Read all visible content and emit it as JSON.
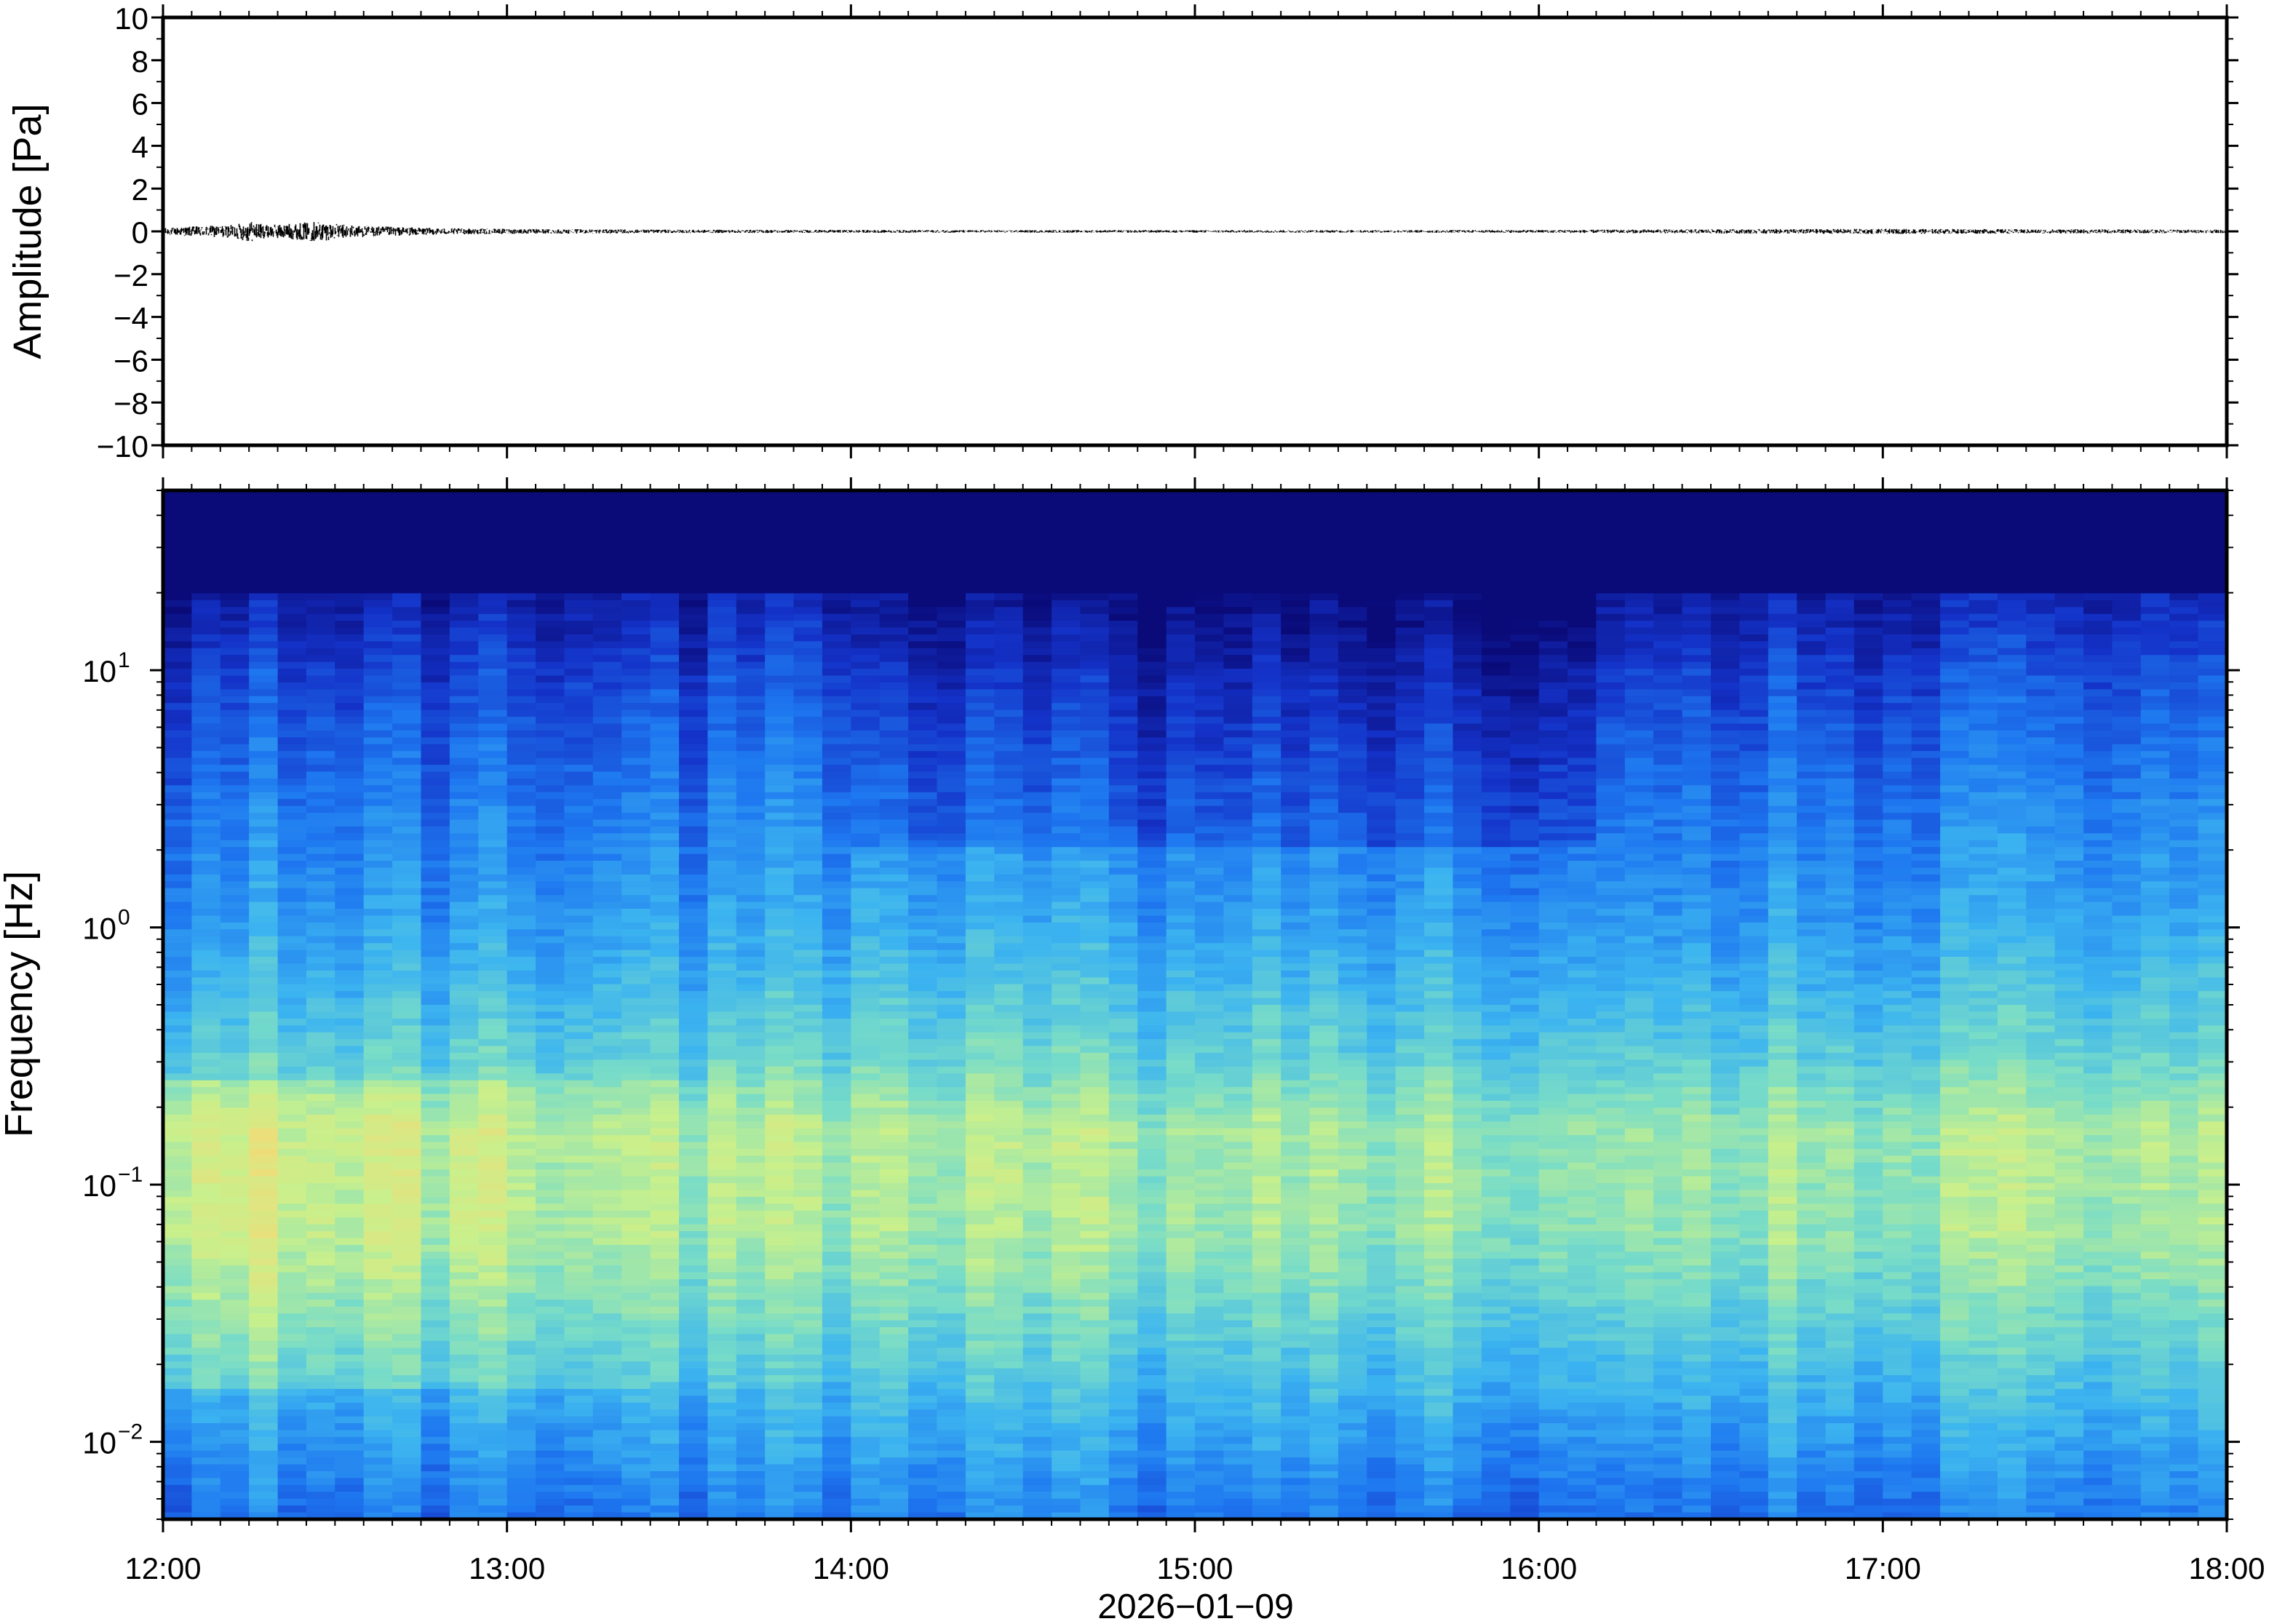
{
  "chart_data": [
    {
      "type": "line",
      "panel": "waveform",
      "ylabel": "Amplitude [Pa]",
      "ylim": [
        -10,
        10
      ],
      "yticks": [
        10,
        8,
        6,
        4,
        2,
        0,
        -2,
        -4,
        -6,
        -8,
        -10
      ],
      "ytick_labels": [
        "10",
        "8",
        "6",
        "4",
        "2",
        "0",
        "−2",
        "−4",
        "−6",
        "−8",
        "−10"
      ],
      "xlim_hours": [
        12,
        18
      ],
      "series": [
        {
          "t_hours": [
            12.0,
            12.1,
            12.2,
            12.25,
            12.3,
            12.4,
            12.45,
            12.5,
            12.6,
            12.8,
            13.0,
            13.5,
            14.0,
            14.5,
            15.0,
            15.5,
            16.0,
            16.5,
            17.0,
            17.5,
            18.0
          ],
          "amplitude_envelope_pa": [
            0.15,
            0.25,
            0.3,
            0.5,
            0.3,
            0.4,
            0.5,
            0.35,
            0.25,
            0.15,
            0.12,
            0.08,
            0.07,
            0.06,
            0.06,
            0.06,
            0.07,
            0.1,
            0.12,
            0.1,
            0.08
          ]
        }
      ],
      "grid": false
    },
    {
      "type": "heatmap",
      "panel": "spectrogram",
      "ylabel": "Frequency [Hz]",
      "xlabel": "2026−01−09",
      "yscale": "log",
      "ylim_hz": [
        0.005,
        50
      ],
      "ytick_values": [
        0.01,
        0.1,
        1,
        10
      ],
      "ytick_labels": [
        {
          "base": "10",
          "exp": "−2"
        },
        {
          "base": "10",
          "exp": "−1"
        },
        {
          "base": "10",
          "exp": "0"
        },
        {
          "base": "10",
          "exp": "1"
        }
      ],
      "xtick_labels": [
        "12:00",
        "13:00",
        "14:00",
        "15:00",
        "16:00",
        "17:00",
        "18:00"
      ],
      "xtick_hours": [
        12,
        13,
        14,
        15,
        16,
        17,
        18
      ],
      "colormap": [
        "#0a0a78",
        "#1432c8",
        "#1e78f0",
        "#3cb4f0",
        "#78dcc8",
        "#c8f08c",
        "#f0dc78",
        "#f5c864"
      ],
      "columns": 72,
      "grid": false
    }
  ]
}
